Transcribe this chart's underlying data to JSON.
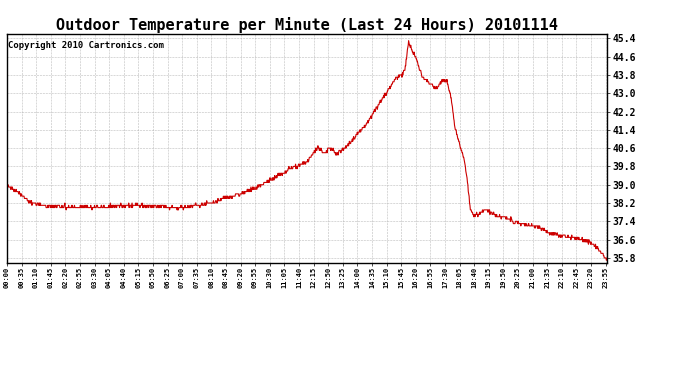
{
  "title": "Outdoor Temperature per Minute (Last 24 Hours) 20101114",
  "copyright": "Copyright 2010 Cartronics.com",
  "line_color": "#cc0000",
  "bg_color": "#ffffff",
  "grid_color": "#aaaaaa",
  "ylim": [
    35.6,
    45.6
  ],
  "yticks": [
    35.8,
    36.6,
    37.4,
    38.2,
    39.0,
    39.8,
    40.6,
    41.4,
    42.2,
    43.0,
    43.8,
    44.6,
    45.4
  ],
  "title_fontsize": 11,
  "copyright_fontsize": 6.5,
  "tick_interval": 35
}
